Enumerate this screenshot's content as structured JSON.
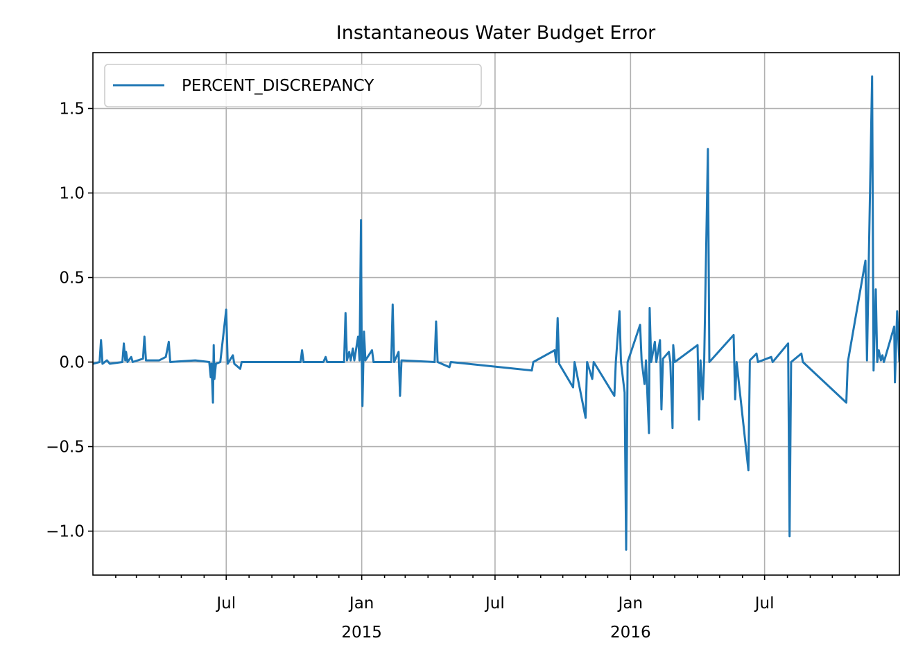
{
  "chart_data": {
    "type": "line",
    "title": "Instantaneous Water Budget Error",
    "xlabel": "",
    "ylabel": "",
    "x_range": [
      "2014-01-01",
      "2016-12-31"
    ],
    "ylim": [
      -1.26,
      1.83
    ],
    "grid": true,
    "legend_position": "upper-left",
    "y_ticks": [
      {
        "value": -1.0,
        "label": "−1.0"
      },
      {
        "value": -0.5,
        "label": "−0.5"
      },
      {
        "value": 0.0,
        "label": "0.0"
      },
      {
        "value": 0.5,
        "label": "0.5"
      },
      {
        "value": 1.0,
        "label": "1.0"
      },
      {
        "value": 1.5,
        "label": "1.5"
      }
    ],
    "x_ticks": [
      {
        "date": "2014-07-01",
        "label": "Jul",
        "sublabel": ""
      },
      {
        "date": "2015-01-01",
        "label": "Jan",
        "sublabel": "2015"
      },
      {
        "date": "2015-07-01",
        "label": "Jul",
        "sublabel": ""
      },
      {
        "date": "2016-01-01",
        "label": "Jan",
        "sublabel": "2016"
      },
      {
        "date": "2016-07-01",
        "label": "Jul",
        "sublabel": ""
      }
    ],
    "series": [
      {
        "name": "PERCENT_DISCREPANCY",
        "color": "#1f77b4",
        "points": [
          [
            "2014-01-01",
            -0.01
          ],
          [
            "2014-01-10",
            0.0
          ],
          [
            "2014-01-12",
            0.13
          ],
          [
            "2014-01-14",
            -0.01
          ],
          [
            "2014-01-20",
            0.01
          ],
          [
            "2014-01-24",
            -0.01
          ],
          [
            "2014-02-10",
            0.0
          ],
          [
            "2014-02-12",
            0.11
          ],
          [
            "2014-02-14",
            0.01
          ],
          [
            "2014-02-15",
            0.06
          ],
          [
            "2014-02-17",
            0.0
          ],
          [
            "2014-02-22",
            0.03
          ],
          [
            "2014-02-24",
            0.0
          ],
          [
            "2014-03-10",
            0.02
          ],
          [
            "2014-03-12",
            0.15
          ],
          [
            "2014-03-14",
            0.01
          ],
          [
            "2014-04-01",
            0.01
          ],
          [
            "2014-04-10",
            0.03
          ],
          [
            "2014-04-14",
            0.12
          ],
          [
            "2014-04-16",
            0.0
          ],
          [
            "2014-05-20",
            0.01
          ],
          [
            "2014-06-08",
            0.0
          ],
          [
            "2014-06-10",
            -0.09
          ],
          [
            "2014-06-11",
            -0.01
          ],
          [
            "2014-06-13",
            -0.24
          ],
          [
            "2014-06-14",
            0.1
          ],
          [
            "2014-06-15",
            -0.1
          ],
          [
            "2014-06-17",
            -0.01
          ],
          [
            "2014-06-23",
            0.0
          ],
          [
            "2014-07-01",
            0.31
          ],
          [
            "2014-07-03",
            -0.01
          ],
          [
            "2014-07-10",
            0.04
          ],
          [
            "2014-07-12",
            -0.01
          ],
          [
            "2014-07-20",
            -0.04
          ],
          [
            "2014-07-22",
            0.0
          ],
          [
            "2014-10-10",
            0.0
          ],
          [
            "2014-10-12",
            0.07
          ],
          [
            "2014-10-14",
            0.0
          ],
          [
            "2014-11-10",
            0.0
          ],
          [
            "2014-11-13",
            0.03
          ],
          [
            "2014-11-15",
            0.0
          ],
          [
            "2014-12-08",
            0.0
          ],
          [
            "2014-12-10",
            0.29
          ],
          [
            "2014-12-12",
            0.01
          ],
          [
            "2014-12-15",
            0.06
          ],
          [
            "2014-12-17",
            0.01
          ],
          [
            "2014-12-20",
            0.08
          ],
          [
            "2014-12-22",
            0.01
          ],
          [
            "2014-12-27",
            0.15
          ],
          [
            "2014-12-29",
            0.01
          ],
          [
            "2014-12-31",
            0.84
          ],
          [
            "2015-01-01",
            0.01
          ],
          [
            "2015-01-02",
            -0.26
          ],
          [
            "2015-01-04",
            0.18
          ],
          [
            "2015-01-06",
            0.01
          ],
          [
            "2015-01-15",
            0.07
          ],
          [
            "2015-01-17",
            0.0
          ],
          [
            "2015-02-10",
            0.0
          ],
          [
            "2015-02-12",
            0.34
          ],
          [
            "2015-02-14",
            0.0
          ],
          [
            "2015-02-20",
            0.06
          ],
          [
            "2015-02-22",
            -0.2
          ],
          [
            "2015-02-24",
            0.01
          ],
          [
            "2015-04-10",
            0.0
          ],
          [
            "2015-04-12",
            0.24
          ],
          [
            "2015-04-14",
            0.0
          ],
          [
            "2015-04-30",
            -0.03
          ],
          [
            "2015-05-02",
            0.0
          ],
          [
            "2015-08-20",
            -0.05
          ],
          [
            "2015-08-22",
            0.0
          ],
          [
            "2015-09-20",
            0.07
          ],
          [
            "2015-09-22",
            0.0
          ],
          [
            "2015-09-24",
            0.26
          ],
          [
            "2015-09-26",
            -0.01
          ],
          [
            "2015-10-15",
            -0.15
          ],
          [
            "2015-10-17",
            0.0
          ],
          [
            "2015-11-01",
            -0.33
          ],
          [
            "2015-11-03",
            0.0
          ],
          [
            "2015-11-10",
            -0.1
          ],
          [
            "2015-11-12",
            0.0
          ],
          [
            "2015-12-10",
            -0.2
          ],
          [
            "2015-12-12",
            0.0
          ],
          [
            "2015-12-17",
            0.3
          ],
          [
            "2015-12-19",
            0.0
          ],
          [
            "2015-12-24",
            -0.18
          ],
          [
            "2015-12-26",
            -1.11
          ],
          [
            "2015-12-28",
            0.0
          ],
          [
            "2016-01-14",
            0.22
          ],
          [
            "2016-01-16",
            0.01
          ],
          [
            "2016-01-20",
            -0.13
          ],
          [
            "2016-01-22",
            0.01
          ],
          [
            "2016-01-26",
            -0.42
          ],
          [
            "2016-01-27",
            0.32
          ],
          [
            "2016-01-29",
            0.0
          ],
          [
            "2016-02-03",
            0.12
          ],
          [
            "2016-02-05",
            0.0
          ],
          [
            "2016-02-10",
            0.13
          ],
          [
            "2016-02-12",
            -0.28
          ],
          [
            "2016-02-14",
            0.02
          ],
          [
            "2016-02-22",
            0.06
          ],
          [
            "2016-02-24",
            0.0
          ],
          [
            "2016-02-27",
            -0.39
          ],
          [
            "2016-02-28",
            0.1
          ],
          [
            "2016-03-01",
            0.0
          ],
          [
            "2016-04-01",
            0.1
          ],
          [
            "2016-04-03",
            -0.34
          ],
          [
            "2016-04-05",
            0.01
          ],
          [
            "2016-04-08",
            -0.22
          ],
          [
            "2016-04-10",
            0.0
          ],
          [
            "2016-04-15",
            1.26
          ],
          [
            "2016-04-17",
            0.0
          ],
          [
            "2016-05-20",
            0.16
          ],
          [
            "2016-05-22",
            -0.22
          ],
          [
            "2016-05-24",
            0.0
          ],
          [
            "2016-06-09",
            -0.64
          ],
          [
            "2016-06-11",
            0.01
          ],
          [
            "2016-06-20",
            0.05
          ],
          [
            "2016-06-22",
            0.0
          ],
          [
            "2016-07-10",
            0.03
          ],
          [
            "2016-07-12",
            0.0
          ],
          [
            "2016-08-02",
            0.11
          ],
          [
            "2016-08-04",
            -1.03
          ],
          [
            "2016-08-06",
            0.0
          ],
          [
            "2016-08-20",
            0.05
          ],
          [
            "2016-08-22",
            0.0
          ],
          [
            "2016-10-20",
            -0.24
          ],
          [
            "2016-10-22",
            0.0
          ],
          [
            "2016-11-15",
            0.6
          ],
          [
            "2016-11-17",
            0.01
          ],
          [
            "2016-11-24",
            1.69
          ],
          [
            "2016-11-26",
            -0.05
          ],
          [
            "2016-11-29",
            0.43
          ],
          [
            "2016-12-01",
            0.0
          ],
          [
            "2016-12-03",
            0.07
          ],
          [
            "2016-12-06",
            0.01
          ],
          [
            "2016-12-08",
            0.04
          ],
          [
            "2016-12-10",
            0.0
          ],
          [
            "2016-12-24",
            0.21
          ],
          [
            "2016-12-25",
            -0.12
          ],
          [
            "2016-12-28",
            0.3
          ],
          [
            "2016-12-31",
            0.0
          ]
        ]
      }
    ]
  }
}
